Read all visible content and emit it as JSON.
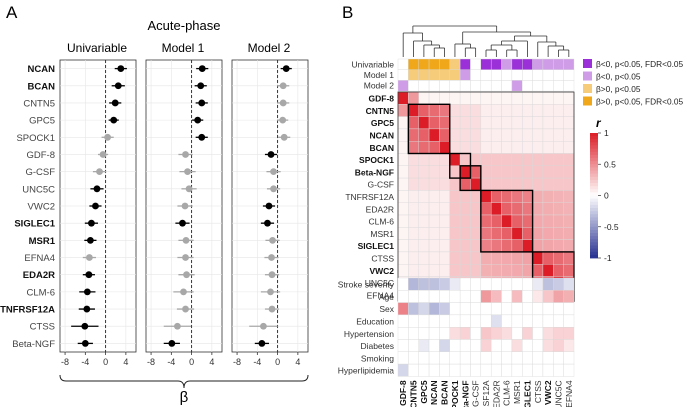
{
  "panel_a": {
    "label": "A",
    "title": "Acute-phase",
    "xlabel": "β",
    "subplots": [
      "Univariable",
      "Model 1",
      "Model 2"
    ]
  },
  "panel_b": {
    "label": "B",
    "legend_title": "r",
    "legend_ticks": [
      "1",
      "0.5",
      "0",
      "-0.5",
      "-1"
    ],
    "model_row_labels": [
      "Univariable",
      "Model 1",
      "Model 2"
    ],
    "clinical_labels": [
      "Stroke severity",
      "Age",
      "Sex",
      "Education",
      "Hypertension",
      "Diabetes",
      "Smoking",
      "Hyperlipidemia"
    ],
    "sig_legend": [
      {
        "label": "β<0, p<0.05, FDR<0.05",
        "color": "#9b30d9"
      },
      {
        "label": "β<0, p<0.05",
        "color": "#cf9de8"
      },
      {
        "label": "β>0, p<0.05",
        "color": "#f6cc7a"
      },
      {
        "label": "β>0, p<0.05, FDR<0.05",
        "color": "#f0a81a"
      }
    ]
  },
  "chart_data": [
    {
      "type": "scatter",
      "title": "Acute-phase",
      "xlabel": "β",
      "xlim": [
        -9,
        6
      ],
      "xticks": [
        "-8",
        "-4",
        "0",
        "4"
      ],
      "xtick_values": [
        -8,
        -4,
        0,
        4
      ],
      "categories": [
        "NCAN",
        "BCAN",
        "CNTN5",
        "GPC5",
        "SPOCK1",
        "GDF-8",
        "G-CSF",
        "UNC5C",
        "VWC2",
        "SIGLEC1",
        "MSR1",
        "EFNA4",
        "EDA2R",
        "CLM-6",
        "TNFRSF12A",
        "CTSS",
        "Beta-NGF"
      ],
      "bold_categories": [
        "NCAN",
        "BCAN",
        "SIGLEC1",
        "MSR1",
        "EDA2R",
        "TNFRSF12A"
      ],
      "series": [
        {
          "name": "Univariable",
          "estimate": [
            3.0,
            2.5,
            1.9,
            1.6,
            0.4,
            -0.5,
            -1.2,
            -1.7,
            -2.0,
            -2.8,
            -3.0,
            -3.2,
            -3.3,
            -3.6,
            -3.7,
            -4.1,
            -4.0
          ],
          "ci_low": [
            1.8,
            1.2,
            0.7,
            0.6,
            -0.8,
            -1.5,
            -2.5,
            -3.0,
            -3.2,
            -4.1,
            -4.2,
            -4.5,
            -4.5,
            -5.2,
            -5.3,
            -6.8,
            -5.5
          ],
          "ci_high": [
            4.2,
            3.8,
            3.1,
            2.6,
            1.6,
            0.5,
            0.1,
            -0.4,
            -0.8,
            -1.5,
            -1.8,
            -1.9,
            -2.1,
            -2.0,
            -2.1,
            -1.4,
            -2.5
          ],
          "significant": [
            true,
            true,
            true,
            true,
            false,
            false,
            false,
            true,
            true,
            true,
            true,
            false,
            true,
            true,
            true,
            true,
            true
          ]
        },
        {
          "name": "Model 1",
          "estimate": [
            2.1,
            1.8,
            2.0,
            1.2,
            2.0,
            -1.2,
            -0.8,
            -0.5,
            -1.3,
            -1.8,
            -1.1,
            -1.2,
            -1.0,
            -1.6,
            -1.2,
            -2.8,
            -3.9
          ],
          "ci_low": [
            0.9,
            0.6,
            0.8,
            0.1,
            0.8,
            -2.6,
            -2.4,
            -2.0,
            -2.8,
            -3.2,
            -2.6,
            -2.8,
            -2.6,
            -3.6,
            -2.9,
            -5.5,
            -5.5
          ],
          "ci_high": [
            3.3,
            3.0,
            3.2,
            2.3,
            3.2,
            0.2,
            0.8,
            1.0,
            0.2,
            -0.4,
            0.4,
            0.4,
            0.6,
            0.4,
            0.5,
            -0.1,
            -2.3
          ],
          "significant": [
            true,
            true,
            true,
            true,
            true,
            false,
            false,
            false,
            false,
            true,
            false,
            false,
            false,
            false,
            false,
            false,
            true
          ]
        },
        {
          "name": "Model 2",
          "estimate": [
            1.7,
            1.1,
            1.1,
            1.0,
            1.3,
            -1.3,
            -0.8,
            -0.8,
            -1.7,
            -2.0,
            -1.0,
            -1.2,
            -1.1,
            -1.4,
            -1.1,
            -2.8,
            -3.1
          ],
          "ci_low": [
            0.6,
            -0.1,
            -0.1,
            -0.1,
            0.1,
            -2.5,
            -2.2,
            -2.1,
            -2.9,
            -3.3,
            -2.4,
            -2.6,
            -2.5,
            -3.3,
            -2.5,
            -5.6,
            -4.5
          ],
          "ci_high": [
            2.8,
            2.3,
            2.3,
            2.1,
            2.5,
            -0.1,
            0.6,
            0.5,
            -0.5,
            -0.7,
            0.4,
            0.2,
            0.3,
            0.5,
            0.3,
            0.0,
            -1.7
          ],
          "significant": [
            true,
            false,
            false,
            false,
            false,
            true,
            false,
            false,
            true,
            true,
            false,
            false,
            false,
            false,
            false,
            false,
            true
          ]
        }
      ]
    },
    {
      "type": "heatmap",
      "title": "",
      "legend_title": "r",
      "zlim": [
        -1,
        1
      ],
      "proteins": [
        "GDF-8",
        "CNTN5",
        "GPC5",
        "NCAN",
        "BCAN",
        "SPOCK1",
        "Beta-NGF",
        "G-CSF",
        "TNFRSF12A",
        "EDA2R",
        "CLM-6",
        "MSR1",
        "SIGLEC1",
        "CTSS",
        "VWC2",
        "UNC5C",
        "EFNA4"
      ],
      "bold_proteins": [
        "GDF-8",
        "CNTN5",
        "GPC5",
        "NCAN",
        "BCAN",
        "SPOCK1",
        "Beta-NGF",
        "SIGLEC1",
        "VWC2"
      ],
      "clusters": [
        [
          1,
          4
        ],
        [
          5,
          6
        ],
        [
          6,
          7
        ],
        [
          8,
          12
        ],
        [
          13,
          16
        ]
      ],
      "model_rows": [
        {
          "name": "Univariable",
          "codes": [
            0,
            3,
            3,
            3,
            3,
            2,
            -2,
            0,
            -2,
            -2,
            -1,
            -2,
            -2,
            -1,
            -1,
            -1,
            -1
          ]
        },
        {
          "name": "Model 1",
          "codes": [
            0,
            2,
            2,
            2,
            2,
            2,
            -1,
            0,
            0,
            0,
            0,
            0,
            0,
            0,
            0,
            0,
            0
          ]
        },
        {
          "name": "Model 2",
          "codes": [
            -1,
            0,
            0,
            0,
            0,
            0,
            0,
            0,
            0,
            0,
            0,
            -1,
            0,
            0,
            0,
            0,
            0
          ]
        }
      ],
      "clinical_rows": [
        {
          "name": "Stroke severity",
          "values": [
            0,
            -0.35,
            -0.3,
            -0.3,
            -0.25,
            -0.1,
            0,
            0,
            0,
            0,
            0,
            0,
            0,
            -0.1,
            -0.3,
            -0.25,
            -0.15
          ]
        },
        {
          "name": "Age",
          "values": [
            0,
            0,
            0,
            0,
            0,
            0,
            0,
            0,
            0.45,
            0.3,
            0,
            0.3,
            0,
            0.1,
            0.25,
            0.4,
            0.35
          ]
        },
        {
          "name": "Sex",
          "values": [
            0.55,
            -0.3,
            -0.2,
            -0.35,
            -0.25,
            0,
            0,
            0,
            0,
            0,
            0,
            0,
            0,
            0,
            0,
            0,
            0
          ]
        },
        {
          "name": "Education",
          "values": [
            0,
            0,
            0,
            0,
            0,
            0,
            0,
            0,
            0,
            -0.15,
            0,
            0,
            0,
            0,
            0,
            0,
            0
          ]
        },
        {
          "name": "Hypertension",
          "values": [
            0,
            0,
            0,
            0,
            0,
            0.15,
            0.2,
            0,
            0.25,
            0.2,
            0.15,
            0,
            0.2,
            0,
            0.15,
            0.2,
            0.2
          ]
        },
        {
          "name": "Diabetes",
          "values": [
            0,
            0,
            -0.1,
            0,
            -0.2,
            0,
            0,
            0,
            0.2,
            0,
            0,
            0.15,
            0,
            0,
            0.15,
            0.2,
            0.1
          ]
        },
        {
          "name": "Smoking",
          "values": [
            0,
            0,
            0,
            0,
            0,
            0,
            0,
            0,
            0,
            0,
            0,
            0,
            0,
            0,
            0,
            0,
            0
          ]
        },
        {
          "name": "Hyperlipidemia",
          "values": [
            -0.2,
            0,
            0,
            0,
            0,
            0,
            0,
            0,
            0,
            0,
            0,
            0,
            0,
            0,
            0,
            0,
            0
          ]
        }
      ]
    }
  ]
}
